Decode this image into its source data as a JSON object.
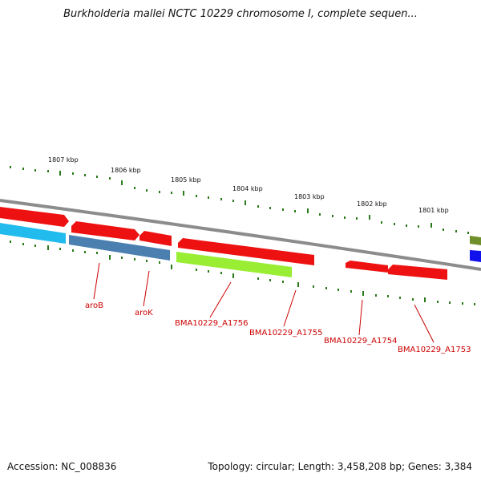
{
  "title": "Burkholderia mallei NCTC 10229 chromosome I, complete sequen...",
  "accession": "Accession: NC_008836",
  "summary": "Topology: circular; Length: 3,458,208 bp; Genes: 3,384",
  "ticks": [
    "1807 kbp",
    "1806 kbp",
    "1805 kbp",
    "1804 kbp",
    "1803 kbp",
    "1802 kbp",
    "1801 kbp"
  ],
  "genes": [
    "aroB",
    "aroK",
    "BMA10229_A1756",
    "BMA10229_A1755",
    "BMA10229_A1754",
    "BMA10229_A1753"
  ],
  "colors": {
    "backbone": "#8c8c8c",
    "forward_gene": "#ee1111",
    "cyan_gene": "#22bbee",
    "steelblue_gene": "#4a7fb0",
    "lime_gene": "#99ee33",
    "olive_gene": "#6f8f2a",
    "blue_gene": "#1111ee",
    "tick": "#2a7a1a",
    "label": "#cc0000"
  }
}
